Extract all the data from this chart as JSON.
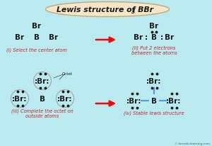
{
  "bg_color": "#b8eaf0",
  "title_box_color": "#f5e6c8",
  "title_box_edge": "#c8a870",
  "text_color": "#1a1a1a",
  "label_color": "#d42020",
  "bond_color": "#4fa0e0",
  "circle_color": "#aaaaaa",
  "watermark": "© knordislearning.com",
  "panel_i_label": "(i) Select the center atom",
  "panel_ii_label": "(ii) Put 2 electrons\nbetween the atoms",
  "panel_iii_label": "(iii) Complete the octet on\noutside atoms",
  "panel_iv_label": "(iv) Stable lewis structure",
  "title_main": "Lewis structure of BBr",
  "title_sub": "3"
}
